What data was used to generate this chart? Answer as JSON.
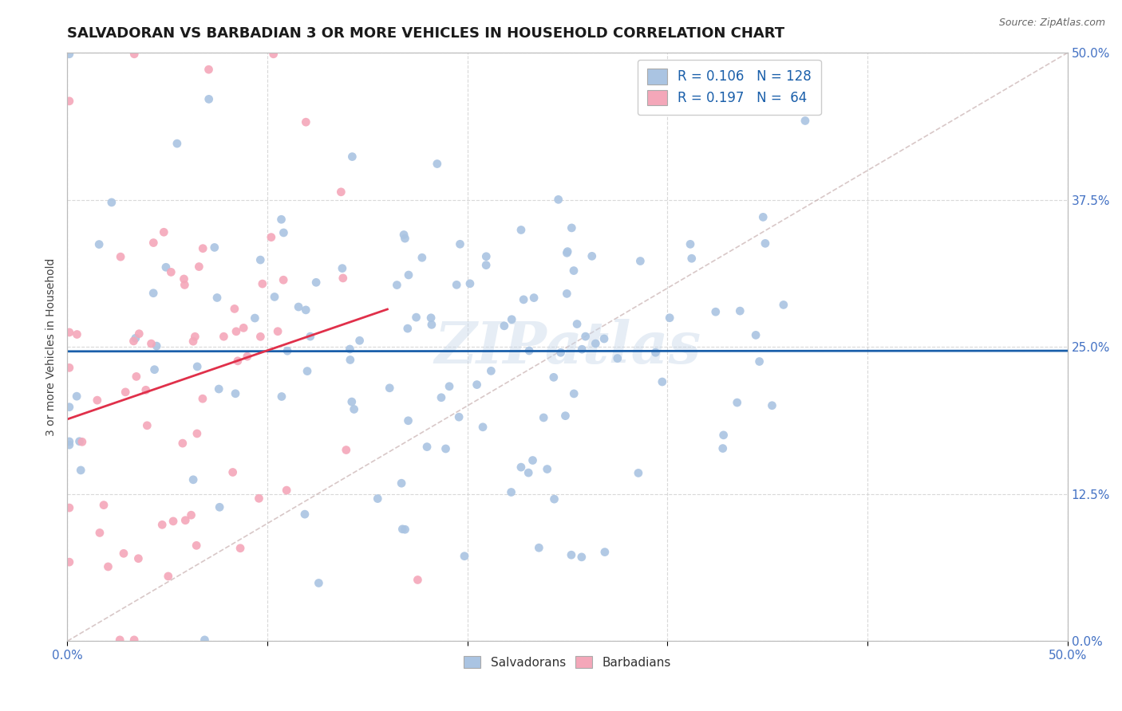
{
  "title": "SALVADORAN VS BARBADIAN 3 OR MORE VEHICLES IN HOUSEHOLD CORRELATION CHART",
  "source": "Source: ZipAtlas.com",
  "ylabel": "3 or more Vehicles in Household",
  "ytick_labels": [
    "0.0%",
    "12.5%",
    "25.0%",
    "37.5%",
    "50.0%"
  ],
  "ytick_values": [
    0.0,
    0.125,
    0.25,
    0.375,
    0.5
  ],
  "xrange": [
    0.0,
    0.5
  ],
  "yrange": [
    0.0,
    0.5
  ],
  "legend_r_salvadoran": "R = 0.106",
  "legend_n_salvadoran": "N = 128",
  "legend_r_barbadian": "R = 0.197",
  "legend_n_barbadian": "N =  64",
  "salvadoran_color": "#aac4e2",
  "barbadian_color": "#f4a7b9",
  "trendline_salvadoran_color": "#1a5faa",
  "trendline_barbadian_color": "#e0304a",
  "watermark": "ZIPatlas",
  "title_fontsize": 13,
  "axis_label_fontsize": 10,
  "tick_fontsize": 11,
  "source_fontsize": 9,
  "background_color": "#ffffff",
  "legend_text_color": "#1a5faa",
  "tick_color": "#4472c4",
  "grid_color": "#d0d0d0",
  "ylabel_color": "#444444",
  "bottom_legend_color": "#333333"
}
